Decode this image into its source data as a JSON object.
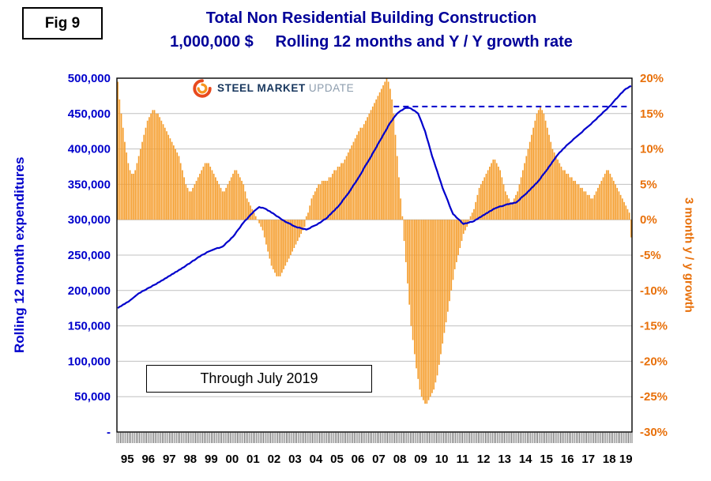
{
  "figure": {
    "label": "Fig 9"
  },
  "title": {
    "line1": "Total Non Residential Building Construction",
    "line2": "1,000,000 $     Rolling 12 months and Y / Y growth rate"
  },
  "logo": {
    "steel": "STEEL",
    "market": "MARKET",
    "update": "UPDATE"
  },
  "annotation": {
    "through_label": "Through July 2019"
  },
  "colors": {
    "title": "#000099",
    "line": "#0000CC",
    "bar": "#F59E2E",
    "right_axis": "#E8700A",
    "grid": "#C0C0C0",
    "border": "#000000",
    "tick": "#333333"
  },
  "chart_data": {
    "type": "combo-bar-line",
    "x": {
      "start": "1995-01",
      "end": "2019-07",
      "months_total": 295,
      "year_labels": [
        "95",
        "96",
        "97",
        "98",
        "99",
        "00",
        "01",
        "02",
        "03",
        "04",
        "05",
        "06",
        "07",
        "08",
        "09",
        "10",
        "11",
        "12",
        "13",
        "14",
        "15",
        "16",
        "17",
        "18",
        "19"
      ]
    },
    "y_left": {
      "title": "Rolling 12 month expenditures",
      "unit": "1,000,000 $",
      "min": 0,
      "max": 500000,
      "step": 50000,
      "tick_labels": [
        "500,000",
        "450,000",
        "400,000",
        "350,000",
        "300,000",
        "250,000",
        "200,000",
        "150,000",
        "100,000",
        "50,000",
        "-"
      ]
    },
    "y_right": {
      "title": "3 month y / y growth",
      "min": -30,
      "max": 20,
      "step": 5,
      "tick_labels": [
        "20%",
        "15%",
        "10%",
        "5%",
        "0%",
        "-5%",
        "-10%",
        "-15%",
        "-20%",
        "-25%",
        "-30%"
      ]
    },
    "reference_line": {
      "value": 460000,
      "axis": "left",
      "style": "dashed",
      "color": "#0000CC",
      "start_month_index": 158
    },
    "series": [
      {
        "name": "Rolling 12 month expenditures",
        "type": "line",
        "axis": "left",
        "color": "#0000CC",
        "values": [
          175000,
          177000,
          178000,
          180000,
          181000,
          183000,
          184000,
          186000,
          188000,
          190000,
          192000,
          194000,
          196000,
          197000,
          199000,
          200000,
          201000,
          203000,
          204000,
          205000,
          207000,
          208000,
          209000,
          211000,
          212000,
          214000,
          215000,
          217000,
          218000,
          220000,
          221000,
          223000,
          224000,
          226000,
          227000,
          229000,
          230000,
          232000,
          233000,
          235000,
          237000,
          238000,
          240000,
          242000,
          243000,
          245000,
          247000,
          248000,
          250000,
          251000,
          252000,
          254000,
          255000,
          256000,
          257000,
          258000,
          259000,
          260000,
          260000,
          261000,
          262000,
          264000,
          267000,
          269000,
          271000,
          274000,
          276000,
          279000,
          283000,
          286000,
          289000,
          293000,
          296000,
          299000,
          301000,
          304000,
          307000,
          309000,
          312000,
          314000,
          316000,
          318000,
          317000,
          317000,
          316000,
          315000,
          313000,
          312000,
          310000,
          309000,
          307000,
          305000,
          304000,
          302000,
          300000,
          299000,
          297000,
          296000,
          295000,
          294000,
          292000,
          291000,
          290000,
          289000,
          289000,
          288000,
          287000,
          287000,
          286000,
          287000,
          288000,
          290000,
          291000,
          292000,
          293000,
          295000,
          296000,
          298000,
          300000,
          301000,
          303000,
          306000,
          308000,
          311000,
          313000,
          316000,
          318000,
          321000,
          324000,
          328000,
          331000,
          334000,
          337000,
          341000,
          345000,
          349000,
          352000,
          356000,
          360000,
          364000,
          368000,
          373000,
          377000,
          381000,
          385000,
          389000,
          394000,
          398000,
          402000,
          407000,
          411000,
          415000,
          420000,
          424000,
          428000,
          433000,
          437000,
          440000,
          444000,
          447000,
          450000,
          452000,
          454000,
          455000,
          457000,
          458000,
          458000,
          458000,
          457000,
          455000,
          454000,
          452000,
          450000,
          444000,
          438000,
          431000,
          425000,
          416000,
          408000,
          399000,
          390000,
          383000,
          375000,
          368000,
          360000,
          353000,
          345000,
          339000,
          333000,
          327000,
          320000,
          314000,
          308000,
          306000,
          303000,
          301000,
          299000,
          296000,
          294000,
          295000,
          295000,
          296000,
          297000,
          297000,
          298000,
          300000,
          301000,
          303000,
          304000,
          306000,
          307000,
          309000,
          310000,
          312000,
          313000,
          315000,
          316000,
          317000,
          318000,
          319000,
          319000,
          320000,
          321000,
          322000,
          322000,
          323000,
          323000,
          324000,
          324000,
          326000,
          328000,
          331000,
          333000,
          335000,
          337000,
          340000,
          342000,
          345000,
          347000,
          350000,
          352000,
          355000,
          358000,
          362000,
          365000,
          368000,
          371000,
          375000,
          378000,
          382000,
          385000,
          389000,
          392000,
          395000,
          397000,
          400000,
          402000,
          405000,
          407000,
          409000,
          411000,
          414000,
          416000,
          418000,
          420000,
          422000,
          424000,
          427000,
          429000,
          431000,
          433000,
          435000,
          438000,
          440000,
          442000,
          445000,
          447000,
          449000,
          452000,
          454000,
          456000,
          459000,
          461000,
          464000,
          467000,
          470000,
          472000,
          475000,
          478000,
          480000,
          483000,
          485000,
          486000,
          488000,
          489000
        ]
      },
      {
        "name": "3 month y / y growth",
        "type": "bar",
        "axis": "right",
        "color": "#F59E2E",
        "values": [
          19.5,
          17,
          15,
          13,
          11,
          9.5,
          8,
          7,
          6.5,
          6.5,
          7,
          8,
          9,
          10,
          11,
          12,
          13,
          14,
          14.5,
          15,
          15.5,
          15.5,
          15,
          15,
          14.5,
          14,
          13.5,
          13,
          12.5,
          12,
          11.5,
          11,
          10.5,
          10,
          9.5,
          9,
          8,
          7,
          6,
          5,
          4.5,
          4,
          4,
          4.5,
          5,
          5.5,
          6,
          6.5,
          7,
          7.5,
          8,
          8,
          8,
          7.5,
          7,
          6.5,
          6,
          5.5,
          5,
          4.5,
          4,
          4,
          4.5,
          5,
          5.5,
          6,
          6.5,
          7,
          7,
          6.5,
          6,
          5.5,
          5,
          4,
          3,
          2.5,
          2,
          1.5,
          1,
          0.5,
          0,
          -0.5,
          -1,
          -1.5,
          -2.5,
          -3.5,
          -4.5,
          -5.5,
          -6.5,
          -7,
          -7.5,
          -8,
          -8,
          -8,
          -7.5,
          -7,
          -6.5,
          -6,
          -5.5,
          -5,
          -4.5,
          -4,
          -3.5,
          -3,
          -2.5,
          -2,
          -1.5,
          -1,
          0.5,
          1,
          2,
          3,
          3.5,
          4,
          4.5,
          5,
          5,
          5.5,
          5.5,
          5.5,
          5.5,
          6,
          6,
          6.5,
          7,
          7,
          7.5,
          7.5,
          8,
          8,
          8.5,
          9,
          9.5,
          10,
          10.5,
          11,
          11.5,
          12,
          12.5,
          13,
          13,
          13.5,
          14,
          14.5,
          15,
          15.5,
          16,
          16.5,
          17,
          17.5,
          18,
          18.5,
          19,
          19.5,
          20,
          19.5,
          18.5,
          17,
          15,
          12,
          9,
          6,
          3,
          0.5,
          -3,
          -6,
          -9,
          -12,
          -15,
          -17,
          -19,
          -21,
          -22.5,
          -24,
          -25,
          -25.5,
          -26,
          -26,
          -25.5,
          -25,
          -24.5,
          -24,
          -23,
          -22,
          -20.5,
          -19,
          -17.5,
          -16,
          -14.5,
          -13,
          -11.5,
          -10,
          -8.5,
          -7,
          -6,
          -5,
          -4,
          -3,
          -2,
          -1.5,
          -1,
          -0.5,
          0.5,
          1,
          1.5,
          2.5,
          3.5,
          4.5,
          5,
          5.5,
          6,
          6.5,
          7,
          7.5,
          8,
          8.5,
          8.5,
          8,
          7.5,
          7,
          6,
          5,
          4,
          3.5,
          3,
          2.5,
          2.5,
          3,
          3.5,
          4,
          5,
          6,
          7,
          8,
          9,
          10,
          11,
          12,
          13,
          14,
          15,
          15.5,
          16,
          15.5,
          15,
          14,
          13,
          12,
          11,
          10,
          9.5,
          9,
          8.5,
          8,
          7.5,
          7,
          7,
          6.5,
          6.5,
          6,
          6,
          5.5,
          5.5,
          5,
          5,
          4.5,
          4.5,
          4,
          4,
          3.5,
          3.5,
          3,
          3,
          3.5,
          4,
          4.5,
          5,
          5.5,
          6,
          6.5,
          7,
          7,
          6.5,
          6,
          5.5,
          5,
          4.5,
          4,
          3.5,
          3,
          2.5,
          2,
          1.5,
          1,
          -2.5
        ]
      }
    ]
  }
}
